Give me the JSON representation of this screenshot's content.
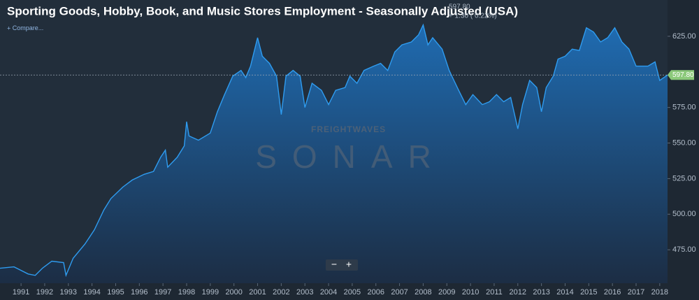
{
  "chart_data": {
    "type": "area",
    "title": "Sporting Goods, Hobby, Book, and Music Stores Employment - Seasonally Adjusted (USA)",
    "last_value": {
      "value": 597.8,
      "label": "597.80"
    },
    "change": "+ 1.30 ( 0.22%)",
    "compare": "Compare...",
    "watermark_brand": "FREIGHTWAVES",
    "watermark_product": "SONAR",
    "zoom_out": "−",
    "zoom_in": "+",
    "color": "#2f9cf0",
    "grid": false,
    "x": [
      1990.11,
      1990.7,
      1991.3,
      1991.6,
      1991.9,
      1992.3,
      1992.8,
      1992.9,
      1993.2,
      1993.7,
      1994.1,
      1994.5,
      1994.8,
      1995.3,
      1995.7,
      1996.2,
      1996.6,
      1996.9,
      1997.1,
      1997.2,
      1997.6,
      1997.9,
      1998.0,
      1998.1,
      1998.5,
      1999.0,
      1999.3,
      1999.6,
      1999.95,
      2000.3,
      2000.5,
      2000.7,
      2001.0,
      2001.2,
      2001.5,
      2001.8,
      2002.0,
      2002.2,
      2002.5,
      2002.8,
      2003.0,
      2003.3,
      2003.7,
      2004.0,
      2004.3,
      2004.7,
      2004.9,
      2005.2,
      2005.5,
      2005.9,
      2006.2,
      2006.5,
      2006.8,
      2007.1,
      2007.5,
      2007.8,
      2008.0,
      2008.2,
      2008.4,
      2008.8,
      2009.1,
      2009.3,
      2009.5,
      2009.8,
      2010.1,
      2010.5,
      2010.8,
      2011.1,
      2011.4,
      2011.7,
      2012.0,
      2012.2,
      2012.5,
      2012.8,
      2013.0,
      2013.2,
      2013.5,
      2013.7,
      2014.0,
      2014.3,
      2014.6,
      2014.9,
      2015.2,
      2015.5,
      2015.8,
      2016.1,
      2016.4,
      2016.7,
      2017.0,
      2017.3,
      2017.5,
      2017.8,
      2018.0,
      2018.33
    ],
    "values": [
      462,
      463,
      458,
      457,
      462,
      467,
      466,
      457,
      469,
      479,
      489,
      503,
      511,
      519,
      524,
      528,
      530,
      540,
      545,
      533,
      540,
      548,
      565,
      555,
      552,
      557,
      572,
      584,
      597,
      601,
      596,
      604,
      624,
      611,
      606,
      597,
      570,
      597,
      601,
      597,
      575,
      592,
      587,
      577,
      587,
      589,
      597,
      592,
      601,
      604,
      606,
      601,
      614,
      619,
      621,
      626,
      633,
      619,
      624,
      616,
      601,
      594,
      587,
      577,
      584,
      577,
      579,
      584,
      579,
      582,
      560,
      577,
      594,
      589,
      572,
      589,
      597,
      609,
      611,
      616,
      615,
      631,
      628,
      621,
      624,
      631,
      621,
      616,
      604,
      604,
      604,
      607,
      594,
      597.8
    ],
    "xlim": [
      1990.11,
      2018.33
    ],
    "xticks": [
      1991,
      1992,
      1993,
      1994,
      1995,
      1996,
      1997,
      1998,
      1999,
      2000,
      2001,
      2002,
      2003,
      2004,
      2005,
      2006,
      2007,
      2008,
      2009,
      2010,
      2011,
      2012,
      2013,
      2014,
      2015,
      2016,
      2017,
      2018
    ],
    "ylim": [
      451.5,
      650.5
    ],
    "yticks": [
      {
        "value": 475,
        "label": "475.00"
      },
      {
        "value": 500,
        "label": "500.00"
      },
      {
        "value": 525,
        "label": "525.00"
      },
      {
        "value": 550,
        "label": "550.00"
      },
      {
        "value": 575,
        "label": "575.00"
      },
      {
        "value": 625,
        "label": "625.00"
      }
    ]
  }
}
